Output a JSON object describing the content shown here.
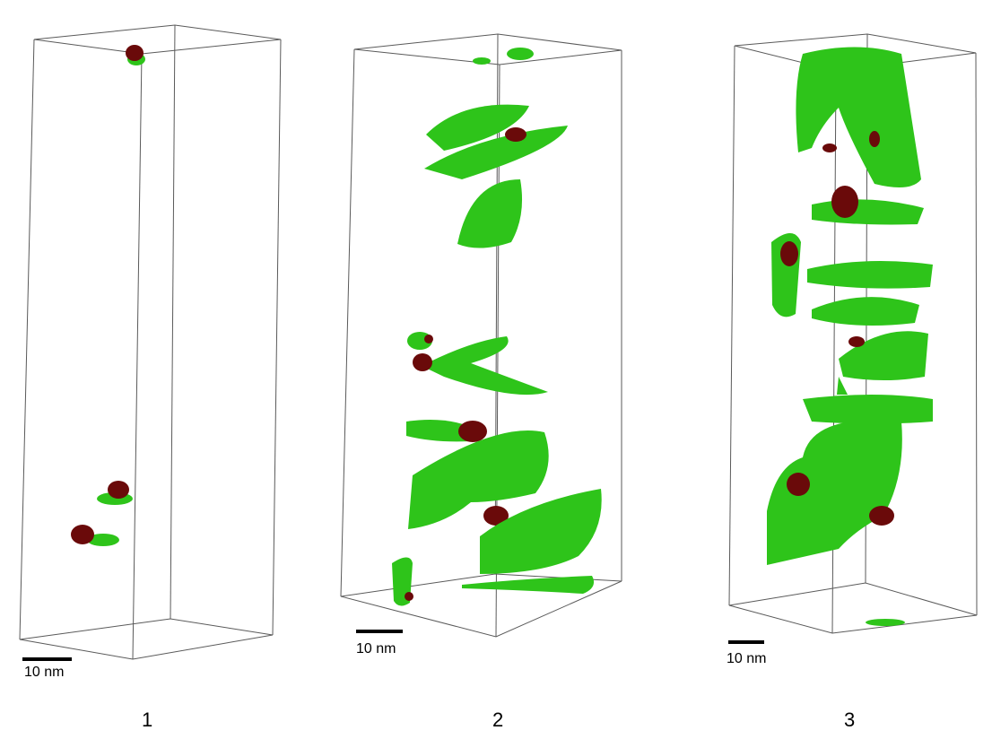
{
  "panels": [
    {
      "number": "1",
      "scale_bar_label": "10 nm"
    },
    {
      "number": "2",
      "scale_bar_label": "10 nm"
    },
    {
      "number": "3",
      "scale_bar_label": "10 nm"
    }
  ],
  "colors": {
    "box_edge": "#5a5a5a",
    "green_phase": "#2ec41a",
    "green_phase_light": "#6dff3c",
    "red_phase": "#6a0a0a",
    "scale_bar": "#000000"
  }
}
